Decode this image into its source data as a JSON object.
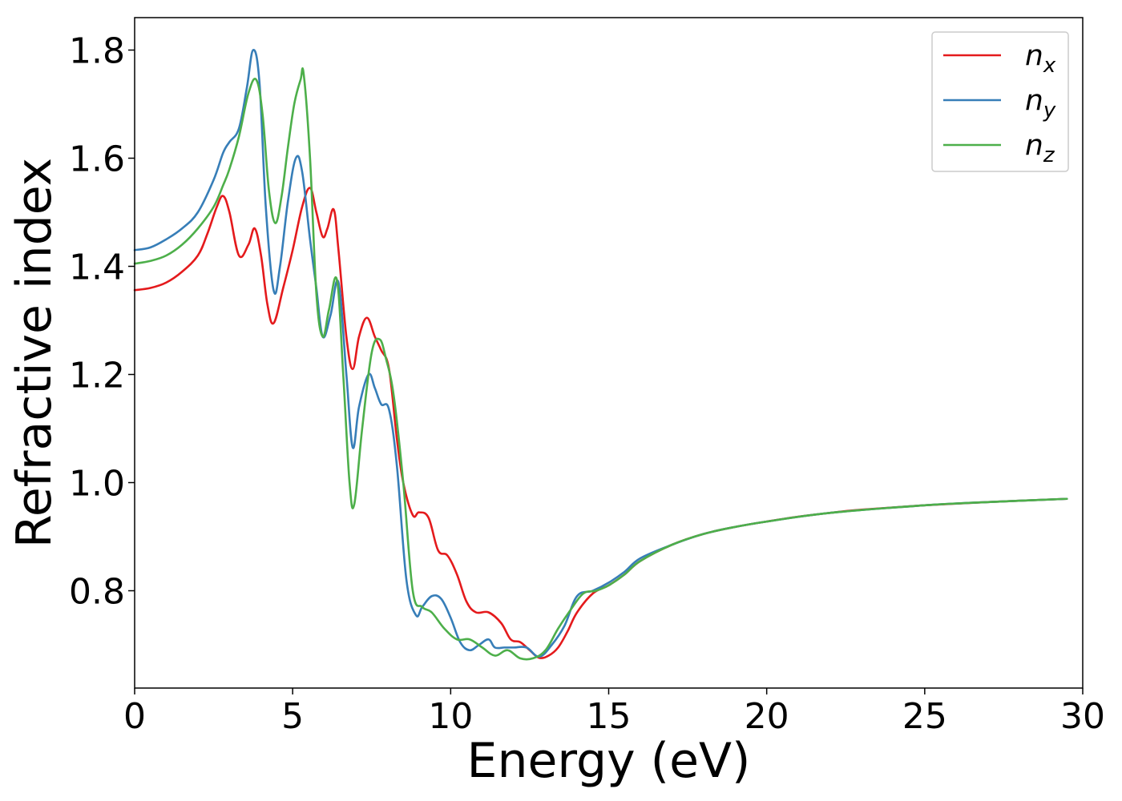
{
  "chart_data": {
    "type": "line",
    "title": "",
    "xlabel": "Energy (eV)",
    "ylabel": "Refractive index",
    "xlim": [
      0,
      30
    ],
    "ylim": [
      0.62,
      1.86
    ],
    "xticks": [
      0,
      5,
      10,
      15,
      20,
      25,
      30
    ],
    "xtick_labels": [
      "0",
      "5",
      "10",
      "15",
      "20",
      "25",
      "30"
    ],
    "yticks": [
      0.8,
      1.0,
      1.2,
      1.4,
      1.6,
      1.8
    ],
    "ytick_labels": [
      "0.8",
      "1.0",
      "1.2",
      "1.4",
      "1.6",
      "1.8"
    ],
    "grid": false,
    "legend_position": "top-right",
    "series": [
      {
        "name": "n",
        "subscript": "x",
        "color": "#e41a1c",
        "x": [
          0,
          0.5,
          1.0,
          1.5,
          2.0,
          2.3,
          2.6,
          2.8,
          3.0,
          3.3,
          3.6,
          3.8,
          4.0,
          4.2,
          4.4,
          4.7,
          5.0,
          5.3,
          5.55,
          5.75,
          5.95,
          6.1,
          6.3,
          6.45,
          6.7,
          6.9,
          7.1,
          7.35,
          7.6,
          7.8,
          8.05,
          8.3,
          8.5,
          8.8,
          9.0,
          9.3,
          9.6,
          9.9,
          10.2,
          10.5,
          10.8,
          11.2,
          11.6,
          11.9,
          12.2,
          12.5,
          12.8,
          13.1,
          13.4,
          13.7,
          14.0,
          14.5,
          15.0,
          15.5,
          16.0,
          17.0,
          18.0,
          19.0,
          20.0,
          21.0,
          22.0,
          23.0,
          25.0,
          27.0,
          29.5
        ],
        "y": [
          1.356,
          1.36,
          1.37,
          1.39,
          1.42,
          1.46,
          1.51,
          1.53,
          1.5,
          1.42,
          1.44,
          1.47,
          1.42,
          1.33,
          1.295,
          1.36,
          1.43,
          1.51,
          1.545,
          1.5,
          1.455,
          1.47,
          1.505,
          1.43,
          1.27,
          1.21,
          1.27,
          1.305,
          1.27,
          1.245,
          1.21,
          1.08,
          1.0,
          0.94,
          0.945,
          0.935,
          0.875,
          0.865,
          0.83,
          0.78,
          0.76,
          0.76,
          0.74,
          0.71,
          0.705,
          0.69,
          0.676,
          0.68,
          0.695,
          0.725,
          0.76,
          0.795,
          0.81,
          0.83,
          0.855,
          0.885,
          0.905,
          0.918,
          0.928,
          0.937,
          0.944,
          0.95,
          0.958,
          0.964,
          0.97
        ]
      },
      {
        "name": "n",
        "subscript": "y",
        "color": "#377eb8",
        "x": [
          0,
          0.5,
          1.0,
          1.5,
          2.0,
          2.5,
          2.8,
          3.0,
          3.3,
          3.55,
          3.75,
          3.95,
          4.15,
          4.4,
          4.6,
          4.85,
          5.1,
          5.3,
          5.55,
          5.75,
          5.95,
          6.2,
          6.45,
          6.7,
          6.9,
          7.1,
          7.4,
          7.6,
          7.8,
          8.05,
          8.3,
          8.6,
          8.9,
          9.1,
          9.4,
          9.7,
          10.0,
          10.3,
          10.6,
          10.9,
          11.2,
          11.4,
          11.7,
          12.0,
          12.4,
          12.8,
          13.2,
          13.6,
          14.0,
          14.5,
          15.0,
          15.5,
          16.0,
          17.0,
          18.0,
          19.0,
          20.0,
          22.0,
          25.0,
          27.0,
          29.5
        ],
        "y": [
          1.43,
          1.435,
          1.45,
          1.47,
          1.5,
          1.56,
          1.61,
          1.63,
          1.655,
          1.73,
          1.8,
          1.74,
          1.51,
          1.355,
          1.4,
          1.52,
          1.6,
          1.575,
          1.45,
          1.36,
          1.27,
          1.31,
          1.37,
          1.2,
          1.065,
          1.14,
          1.2,
          1.175,
          1.145,
          1.135,
          1.03,
          0.82,
          0.755,
          0.77,
          0.79,
          0.785,
          0.75,
          0.705,
          0.69,
          0.7,
          0.71,
          0.695,
          0.695,
          0.695,
          0.695,
          0.678,
          0.7,
          0.735,
          0.79,
          0.8,
          0.815,
          0.835,
          0.86,
          0.885,
          0.905,
          0.918,
          0.928,
          0.944,
          0.958,
          0.964,
          0.97
        ]
      },
      {
        "name": "n",
        "subscript": "z",
        "color": "#4daf4a",
        "x": [
          0,
          0.5,
          1.0,
          1.5,
          2.0,
          2.5,
          2.8,
          3.0,
          3.3,
          3.6,
          3.85,
          4.05,
          4.25,
          4.45,
          4.65,
          4.85,
          5.05,
          5.25,
          5.35,
          5.55,
          5.75,
          5.95,
          6.15,
          6.4,
          6.6,
          6.8,
          6.95,
          7.2,
          7.5,
          7.75,
          7.95,
          8.2,
          8.5,
          8.8,
          9.1,
          9.4,
          9.8,
          10.2,
          10.6,
          11.0,
          11.4,
          11.8,
          12.2,
          12.6,
          13.0,
          13.4,
          13.8,
          14.2,
          14.6,
          15.0,
          15.5,
          16.0,
          17.0,
          18.0,
          19.0,
          20.0,
          22.0,
          25.0,
          27.0,
          29.5
        ],
        "y": [
          1.405,
          1.41,
          1.42,
          1.44,
          1.47,
          1.51,
          1.55,
          1.58,
          1.64,
          1.72,
          1.745,
          1.68,
          1.54,
          1.48,
          1.53,
          1.62,
          1.7,
          1.745,
          1.755,
          1.6,
          1.35,
          1.27,
          1.32,
          1.375,
          1.2,
          1.0,
          0.96,
          1.1,
          1.24,
          1.265,
          1.23,
          1.16,
          1.0,
          0.8,
          0.77,
          0.76,
          0.73,
          0.71,
          0.71,
          0.695,
          0.68,
          0.69,
          0.675,
          0.675,
          0.69,
          0.73,
          0.765,
          0.795,
          0.8,
          0.81,
          0.83,
          0.855,
          0.885,
          0.905,
          0.918,
          0.928,
          0.944,
          0.958,
          0.964,
          0.97
        ]
      }
    ]
  }
}
